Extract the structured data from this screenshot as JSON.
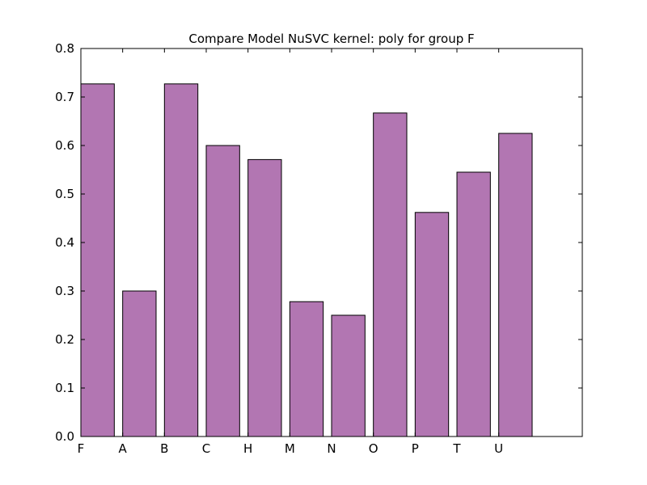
{
  "chart_data": {
    "type": "bar",
    "title": "Compare Model NuSVC kernel: poly for group F",
    "xlabel": "",
    "ylabel": "",
    "categories": [
      "F",
      "A",
      "B",
      "C",
      "H",
      "M",
      "N",
      "O",
      "P",
      "T",
      "U"
    ],
    "values": [
      0.727,
      0.3,
      0.727,
      0.6,
      0.571,
      0.278,
      0.25,
      0.667,
      0.462,
      0.545,
      0.625
    ],
    "ylim": [
      0.0,
      0.8
    ],
    "xlim": [
      0,
      12
    ],
    "yticks": [
      "0.0",
      "0.1",
      "0.2",
      "0.3",
      "0.4",
      "0.5",
      "0.6",
      "0.7",
      "0.8"
    ],
    "bar_color": "#b276b2",
    "edge_color": "#000000",
    "grid": false,
    "legend": "none"
  }
}
